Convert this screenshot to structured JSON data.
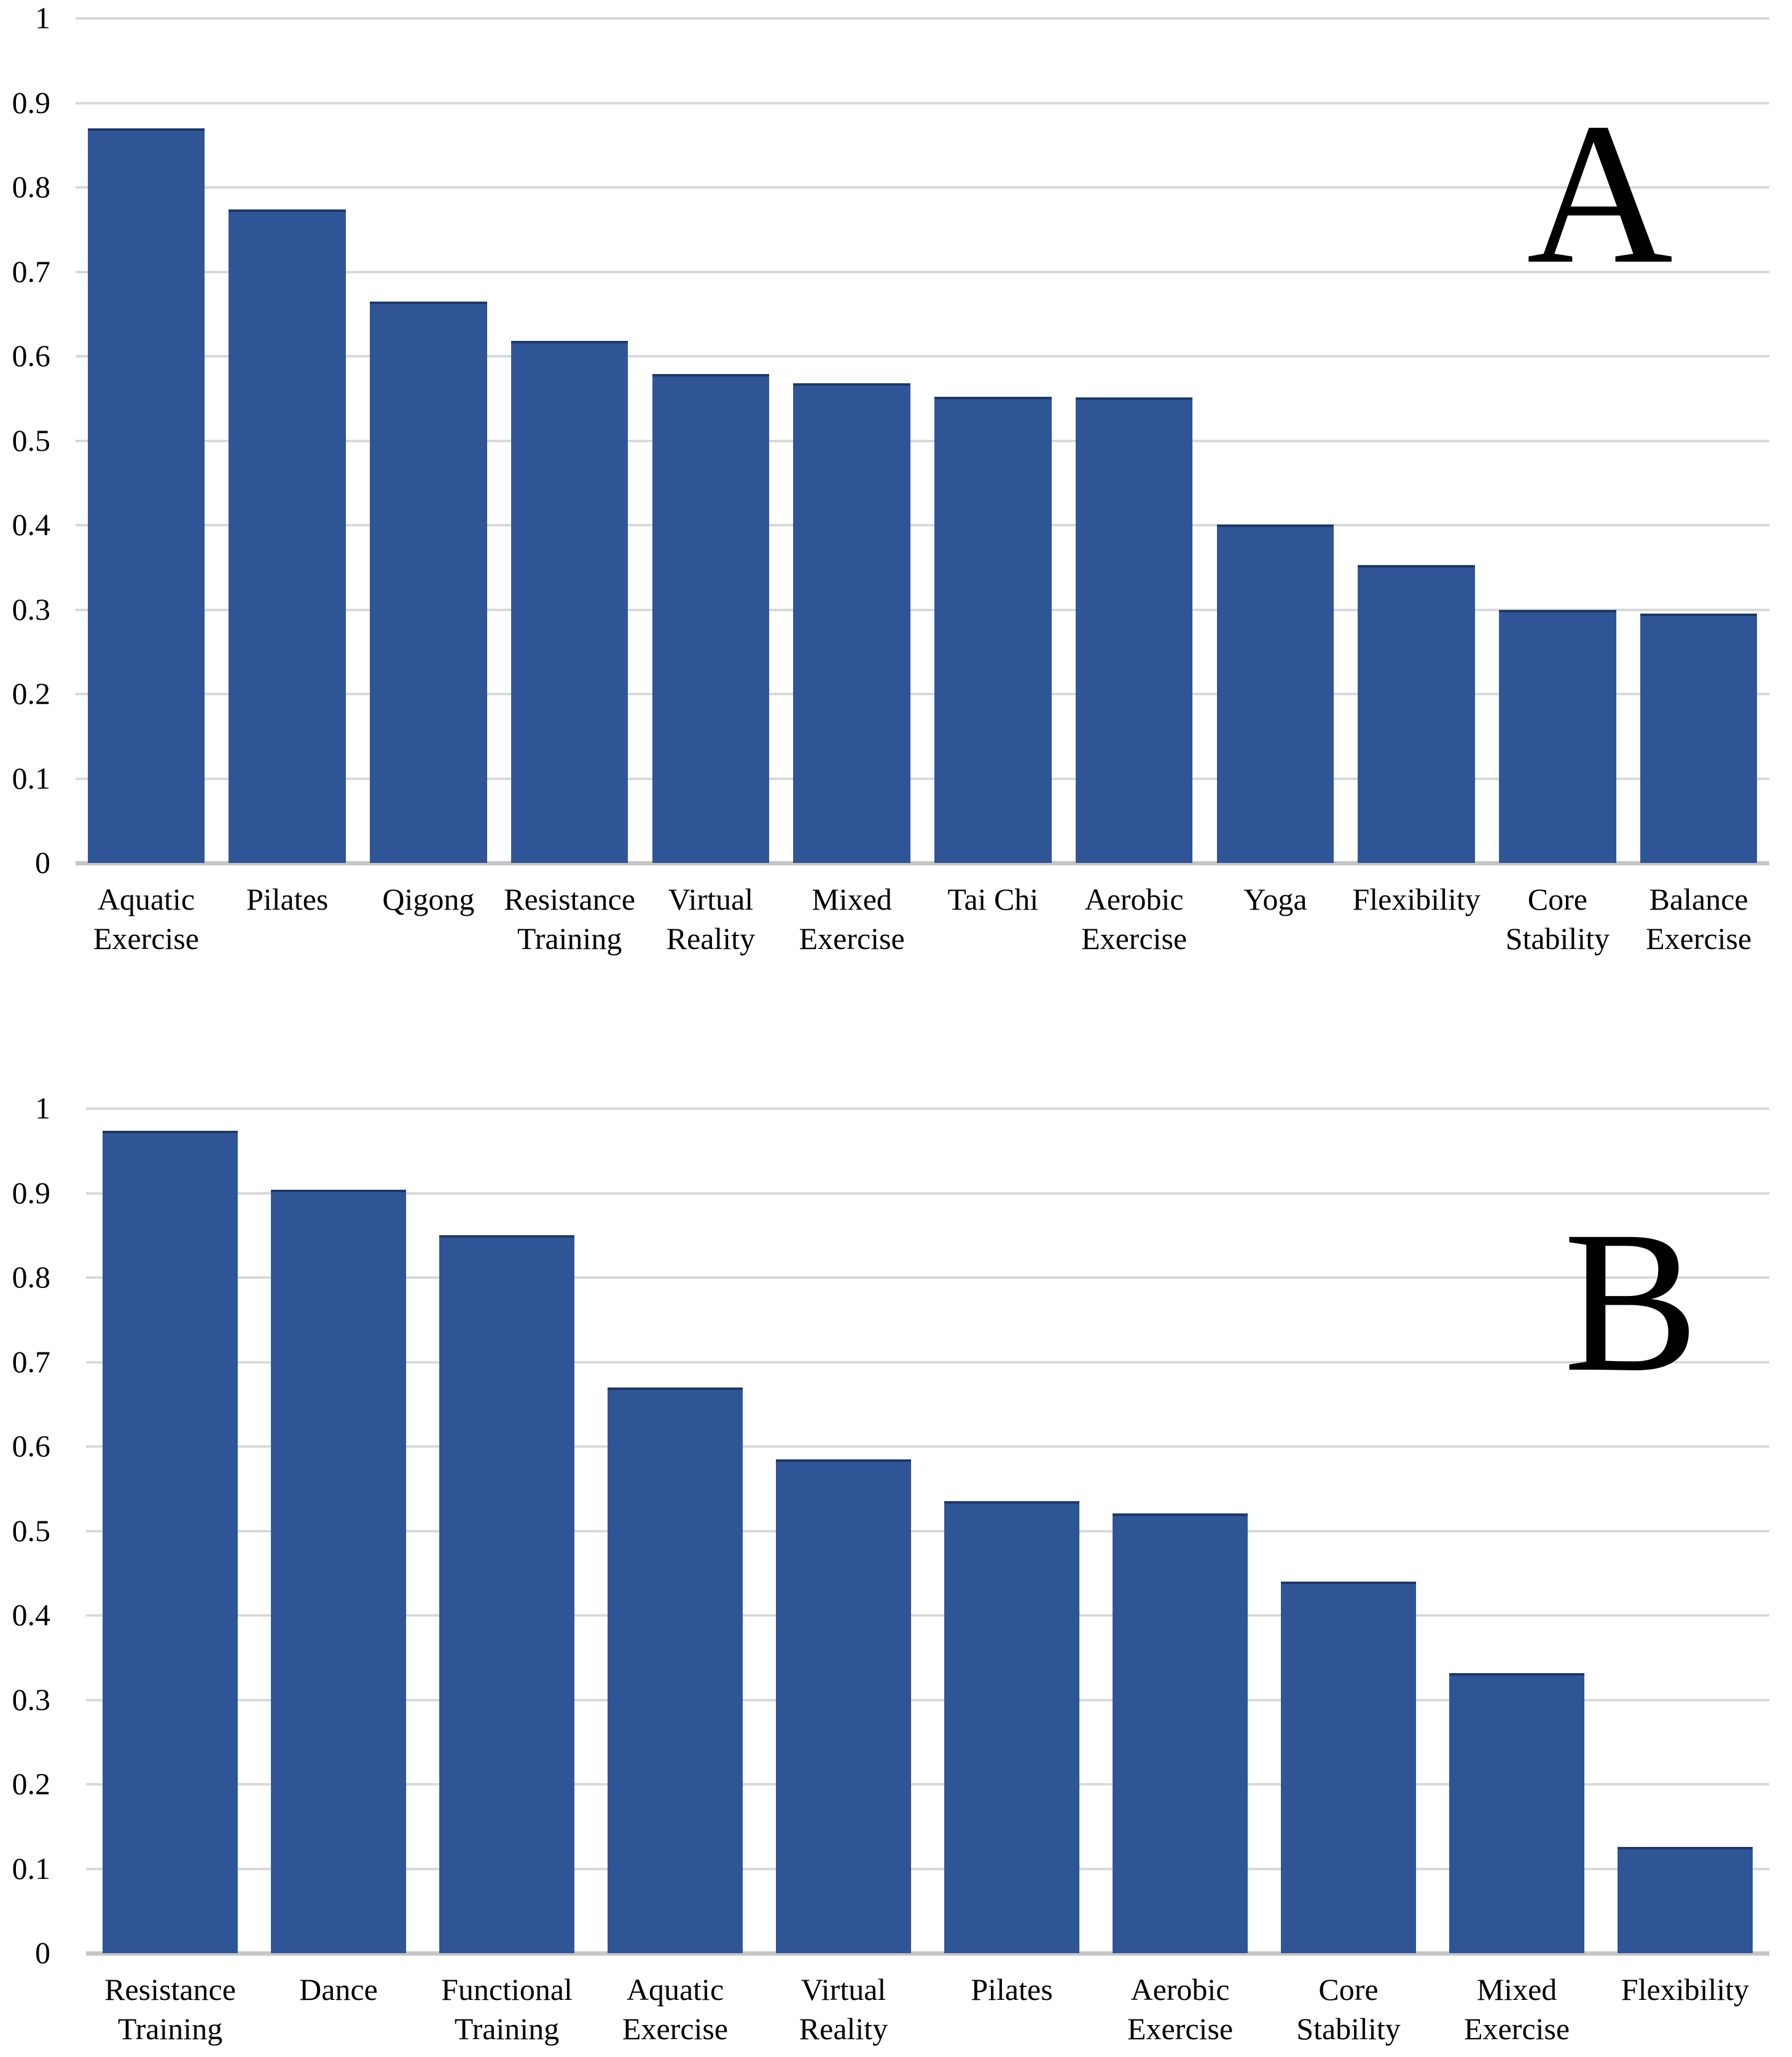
{
  "figure": {
    "background": "#FFFFFF",
    "panels": [
      "A",
      "B"
    ]
  },
  "colors": {
    "bar": "#2F5597",
    "bar_top_edge": "#1F3864",
    "gridline": "#D9D9D9",
    "axis_line": "#C6C6C6",
    "text": "#000000"
  },
  "chart_data": [
    {
      "type": "bar",
      "panel_label": "A",
      "categories": [
        "Aquatic\nExercise",
        "Pilates",
        "Qigong",
        "Resistance\nTraining",
        "Virtual\nReality",
        "Mixed\nExercise",
        "Tai Chi",
        "Aerobic\nExercise",
        "Yoga",
        "Flexibility",
        "Core\nStability",
        "Balance\nExercise"
      ],
      "values": [
        0.87,
        0.774,
        0.665,
        0.618,
        0.579,
        0.568,
        0.552,
        0.551,
        0.401,
        0.353,
        0.3,
        0.295
      ],
      "y_ticks": [
        "1",
        "0.9",
        "0.8",
        "0.7",
        "0.6",
        "0.5",
        "0.4",
        "0.3",
        "0.2",
        "0.1",
        "0"
      ],
      "ylim": [
        0,
        1
      ],
      "grid": true,
      "legend": "none",
      "xlabel": "",
      "ylabel": ""
    },
    {
      "type": "bar",
      "panel_label": "B",
      "categories": [
        "Resistance\nTraining",
        "Dance",
        "Functional\nTraining",
        "Aquatic\nExercise",
        "Virtual\nReality",
        "Pilates",
        "Aerobic\nExercise",
        "Core\nStability",
        "Mixed\nExercise",
        "Flexibility"
      ],
      "values": [
        0.974,
        0.904,
        0.85,
        0.67,
        0.585,
        0.535,
        0.521,
        0.44,
        0.332,
        0.126
      ],
      "y_ticks": [
        "1",
        "0.9",
        "0.8",
        "0.7",
        "0.6",
        "0.5",
        "0.4",
        "0.3",
        "0.2",
        "0.1",
        "0"
      ],
      "ylim": [
        0,
        1
      ],
      "grid": true,
      "legend": "none",
      "xlabel": "",
      "ylabel": ""
    }
  ]
}
